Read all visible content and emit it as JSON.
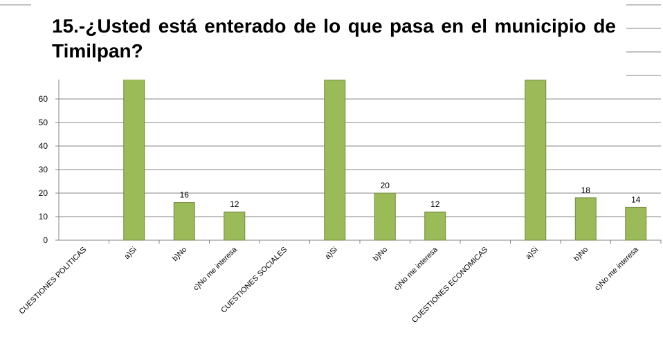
{
  "chart_data": {
    "type": "bar",
    "title": "15.-¿Usted está enterado de lo que pasa en el municipio de Timilpan?",
    "categories": [
      "CUESTIONES POLITICAS",
      "a)Si",
      "b)No",
      "c)No me interesa",
      "CUESTIONES SOCIALES",
      "a)Si",
      "b)No",
      "c)No me interesa",
      "CUESTIONES ECONOMICAS",
      "a)Si",
      "b)No",
      "c)No me interesa"
    ],
    "values": [
      null,
      72,
      16,
      12,
      null,
      68,
      20,
      12,
      null,
      68,
      18,
      14
    ],
    "color": "#9bbb59",
    "ylim": [
      0,
      100
    ],
    "yticks": [
      0,
      10,
      20,
      30,
      40,
      50,
      60,
      70,
      80,
      90,
      100
    ],
    "grid": true
  }
}
